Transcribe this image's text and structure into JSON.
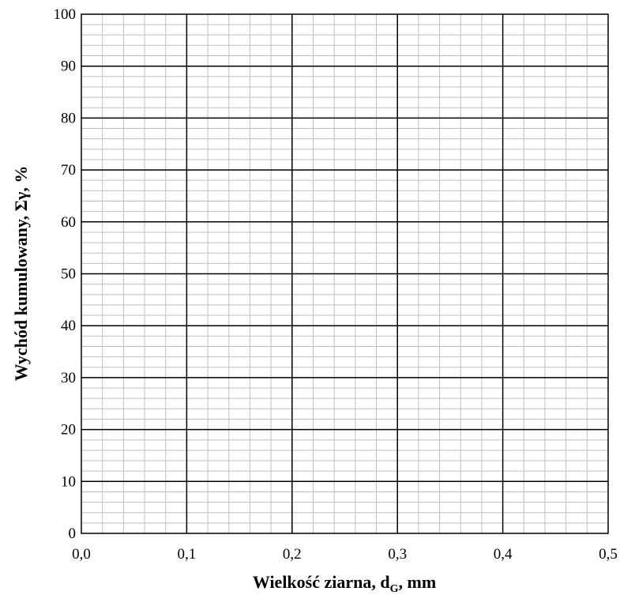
{
  "chart_data": {
    "type": "scatter",
    "series": [],
    "xlabel_main": "Wielkość ziarna, d",
    "xlabel_sub": "G",
    "xlabel_tail": ", mm",
    "ylabel": "Wychód kumulowany, Σγ, %",
    "xlim": [
      0,
      0.5
    ],
    "ylim": [
      0,
      100
    ],
    "x_ticks": [
      {
        "value": 0.0,
        "label": "0,0"
      },
      {
        "value": 0.1,
        "label": "0,1"
      },
      {
        "value": 0.2,
        "label": "0,2"
      },
      {
        "value": 0.3,
        "label": "0,3"
      },
      {
        "value": 0.4,
        "label": "0,4"
      },
      {
        "value": 0.5,
        "label": "0,5"
      }
    ],
    "y_ticks": [
      {
        "value": 0,
        "label": "0"
      },
      {
        "value": 10,
        "label": "10"
      },
      {
        "value": 20,
        "label": "20"
      },
      {
        "value": 30,
        "label": "30"
      },
      {
        "value": 40,
        "label": "40"
      },
      {
        "value": 50,
        "label": "50"
      },
      {
        "value": 60,
        "label": "60"
      },
      {
        "value": 70,
        "label": "70"
      },
      {
        "value": 80,
        "label": "80"
      },
      {
        "value": 90,
        "label": "90"
      },
      {
        "value": 100,
        "label": "100"
      }
    ],
    "major_grid": true,
    "minor_grid": true,
    "x_minor_step": 0.02,
    "y_minor_step": 2,
    "major_grid_color": "#000000",
    "minor_grid_color": "#bfbfbf"
  }
}
